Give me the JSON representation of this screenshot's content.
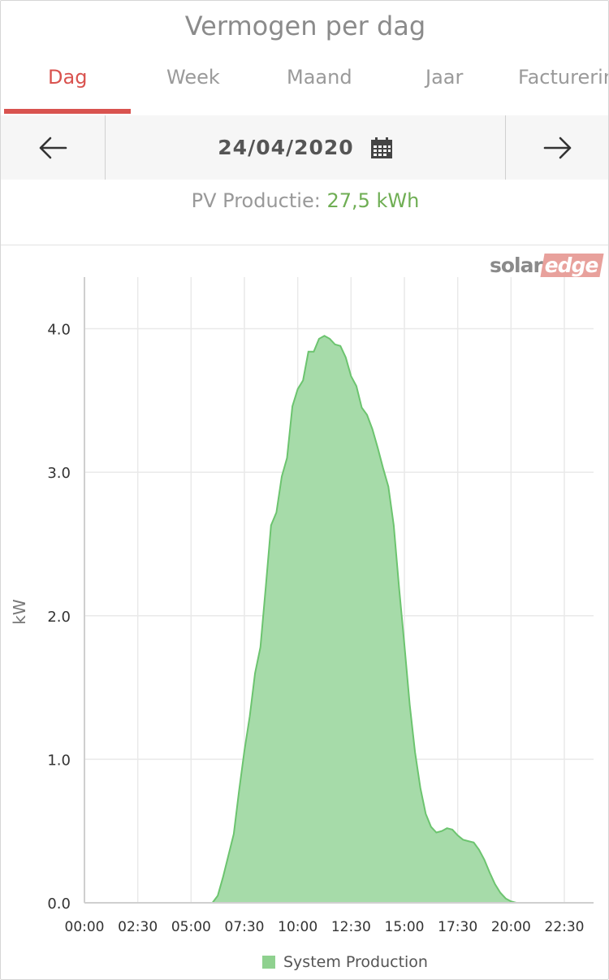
{
  "header": {
    "title": "Vermogen per dag"
  },
  "tabs": [
    {
      "label": "Dag",
      "active": true
    },
    {
      "label": "Week",
      "active": false
    },
    {
      "label": "Maand",
      "active": false
    },
    {
      "label": "Jaar",
      "active": false
    },
    {
      "label": "Facturerin",
      "active": false
    }
  ],
  "datebar": {
    "prev_icon": "arrow-left-icon",
    "date": "24/04/2020",
    "calendar_icon": "calendar-icon",
    "next_icon": "arrow-right-icon"
  },
  "summary": {
    "label": "PV Productie:",
    "value": "27,5 kWh"
  },
  "logo": {
    "part1": "solar",
    "part2": "edge"
  },
  "colors": {
    "accent": "#d9534f",
    "production_fill": "#a6dba9",
    "production_line": "#6cc46f",
    "summary_value": "#6fae54"
  },
  "chart_data": {
    "type": "area",
    "ylabel": "kW",
    "xlabel": "",
    "yticks": [
      "0.0",
      "1.0",
      "2.0",
      "3.0",
      "4.0"
    ],
    "xticks": [
      "00:00",
      "02:30",
      "05:00",
      "07:30",
      "10:00",
      "12:30",
      "15:00",
      "17:30",
      "20:00",
      "22:30"
    ],
    "ylim": [
      0,
      4.4
    ],
    "xlim_hours": [
      0,
      23.75
    ],
    "grid": true,
    "legend_position": "bottom",
    "series": [
      {
        "name": "System Production",
        "x": [
          0,
          6.0,
          6.25,
          6.5,
          6.75,
          7.0,
          7.25,
          7.5,
          7.75,
          8.0,
          8.25,
          8.5,
          8.75,
          9.0,
          9.25,
          9.5,
          9.75,
          10.0,
          10.25,
          10.5,
          10.75,
          11.0,
          11.25,
          11.5,
          11.75,
          12.0,
          12.25,
          12.5,
          12.75,
          13.0,
          13.25,
          13.5,
          13.75,
          14.0,
          14.25,
          14.5,
          14.75,
          15.0,
          15.25,
          15.5,
          15.75,
          16.0,
          16.25,
          16.5,
          16.75,
          17.0,
          17.25,
          17.5,
          17.75,
          18.0,
          18.25,
          18.5,
          18.75,
          19.0,
          19.25,
          19.5,
          19.75,
          20.0,
          20.25,
          20.5,
          23.75
        ],
        "values": [
          0,
          0,
          0.05,
          0.18,
          0.33,
          0.48,
          0.78,
          1.06,
          1.3,
          1.6,
          1.78,
          2.2,
          2.63,
          2.72,
          2.97,
          3.1,
          3.46,
          3.58,
          3.64,
          3.84,
          3.84,
          3.93,
          3.95,
          3.93,
          3.89,
          3.88,
          3.8,
          3.67,
          3.6,
          3.45,
          3.4,
          3.3,
          3.17,
          3.03,
          2.9,
          2.63,
          2.2,
          1.8,
          1.38,
          1.05,
          0.8,
          0.62,
          0.53,
          0.49,
          0.5,
          0.52,
          0.51,
          0.47,
          0.44,
          0.43,
          0.42,
          0.37,
          0.3,
          0.21,
          0.13,
          0.07,
          0.03,
          0.01,
          0,
          0,
          0
        ]
      }
    ]
  }
}
